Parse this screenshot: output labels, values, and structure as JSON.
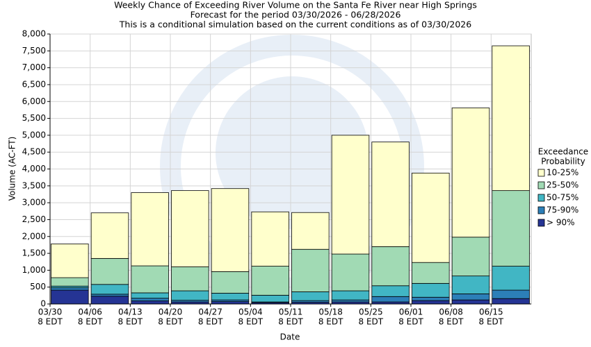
{
  "chart_data": {
    "type": "stacked_bar",
    "title": [
      "Weekly Chance of Exceeding River Volume on the Santa Fe River near High Springs",
      "Forecast for the period 03/30/2026 - 06/28/2026",
      "This is a conditional simulation based on the current conditions as of 03/30/2026"
    ],
    "x_label": "Date",
    "y_label": "Volume (AC-FT)",
    "categories": [
      "03/30",
      "04/06",
      "04/13",
      "04/20",
      "04/27",
      "05/04",
      "05/11",
      "05/18",
      "05/25",
      "06/01",
      "06/08",
      "06/15"
    ],
    "category_sublabels": [
      "8 EDT",
      "8 EDT",
      "8 EDT",
      "8 EDT",
      "8 EDT",
      "8 EDT",
      "8 EDT",
      "8 EDT",
      "8 EDT",
      "8 EDT",
      "8 EDT",
      "8 EDT"
    ],
    "legend_title": [
      "Exceedance",
      "Probability"
    ],
    "legend_position": "right",
    "grid": true,
    "series": [
      {
        "name": "> 90%",
        "color": "#253494",
        "values": [
          410,
          230,
          90,
          60,
          70,
          40,
          50,
          60,
          60,
          100,
          120,
          160
        ]
      },
      {
        "name": "75-90%",
        "color": "#2c7fb8",
        "values": [
          70,
          60,
          80,
          50,
          50,
          20,
          50,
          60,
          160,
          100,
          180,
          250
        ]
      },
      {
        "name": "50-75%",
        "color": "#41b6c4",
        "values": [
          50,
          290,
          160,
          280,
          200,
          200,
          260,
          270,
          320,
          410,
          530,
          710
        ]
      },
      {
        "name": "25-50%",
        "color": "#a1dab4",
        "values": [
          250,
          770,
          800,
          710,
          640,
          860,
          1260,
          1090,
          1160,
          620,
          1150,
          2240
        ]
      },
      {
        "name": "10-25%",
        "color": "#ffffcc",
        "values": [
          1000,
          1350,
          2170,
          2260,
          2460,
          1610,
          1090,
          3520,
          3100,
          2650,
          3830,
          4290
        ]
      }
    ],
    "ylim": [
      0,
      8000
    ],
    "yticks": [
      0,
      500,
      {
        "value": 1000,
        "label": "1,000"
      },
      {
        "value": 1500,
        "label": "1,500"
      },
      {
        "value": 2000,
        "label": "2,000"
      },
      {
        "value": 2500,
        "label": "2,500"
      },
      {
        "value": 3000,
        "label": "3,000"
      },
      {
        "value": 3500,
        "label": "3,500"
      },
      {
        "value": 4000,
        "label": "4,000"
      },
      {
        "value": 4500,
        "label": "4,500"
      },
      {
        "value": 5000,
        "label": "5,000"
      },
      {
        "value": 5500,
        "label": "5,500"
      },
      {
        "value": 6000,
        "label": "6,000"
      },
      {
        "value": 6500,
        "label": "6,500"
      },
      {
        "value": 7000,
        "label": "7,000"
      },
      {
        "value": 7500,
        "label": "7,500"
      },
      {
        "value": 8000,
        "label": "8,000"
      }
    ]
  }
}
